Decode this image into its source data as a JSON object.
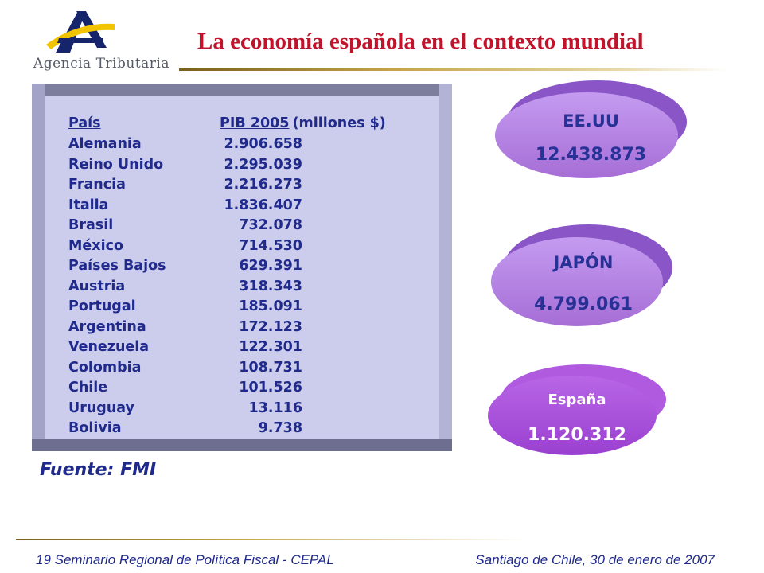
{
  "header": {
    "agency_name": "Agencia Tributaria",
    "title": "La economía española en el contexto mundial"
  },
  "table": {
    "header_country": "País",
    "header_pib": "PIB 2005",
    "header_unit": "(millones $)",
    "rows": [
      {
        "country": "Alemania",
        "value": "2.906.658"
      },
      {
        "country": "Reino Unido",
        "value": "2.295.039"
      },
      {
        "country": "Francia",
        "value": "2.216.273"
      },
      {
        "country": "Italia",
        "value": "1.836.407"
      },
      {
        "country": "Brasil",
        "value": "732.078"
      },
      {
        "country": "México",
        "value": "714.530"
      },
      {
        "country": "Países Bajos",
        "value": "629.391"
      },
      {
        "country": "Austria",
        "value": "318.343"
      },
      {
        "country": "Portugal",
        "value": "185.091"
      },
      {
        "country": "Argentina",
        "value": "172.123"
      },
      {
        "country": "Venezuela",
        "value": "122.301"
      },
      {
        "country": "Colombia",
        "value": "108.731"
      },
      {
        "country": "Chile",
        "value": "101.526"
      },
      {
        "country": "Uruguay",
        "value": "13.116"
      },
      {
        "country": "Bolivia",
        "value": "9.738"
      }
    ]
  },
  "source": "Fuente: FMI",
  "badges": [
    {
      "label": "EE.UU",
      "value": "12.438.873"
    },
    {
      "label": "JAPÓN",
      "value": "4.799.061"
    },
    {
      "label": "España",
      "value": "1.120.312"
    }
  ],
  "footer": {
    "left": "19 Seminario Regional de Política Fiscal - CEPAL",
    "right": "Santiago de Chile, 30 de enero de 2007"
  },
  "colors": {
    "title": "#c0142c",
    "text_blue": "#1f2a8c",
    "badge_purple": "#b07ae0",
    "badge_shadow": "#8a55c6",
    "badge_spain_white": "#ffffff"
  }
}
